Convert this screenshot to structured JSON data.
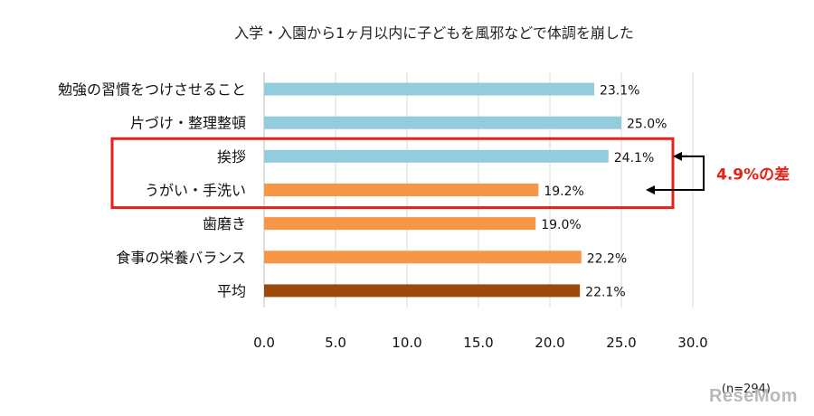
{
  "chart_data": {
    "type": "bar",
    "orientation": "horizontal",
    "title": "入学・入園から1ヶ月以内に子どもを風邪などで体調を崩した",
    "categories": [
      "勉強の習慣をつけさせること",
      "片づけ・整理整頓",
      "挨拶",
      "うがい・手洗い",
      "歯磨き",
      "食事の栄養バランス",
      "平均"
    ],
    "values": [
      23.1,
      25.0,
      24.1,
      19.2,
      19.0,
      22.2,
      22.1
    ],
    "value_labels": [
      "23.1%",
      "25.0%",
      "24.1%",
      "19.2%",
      "19.0%",
      "22.2%",
      "22.1%"
    ],
    "bar_colors": [
      "#93cddd",
      "#93cddd",
      "#93cddd",
      "#f79646",
      "#f79646",
      "#f79646",
      "#9c4a0c"
    ],
    "xlim": [
      0,
      30
    ],
    "xticks": [
      "0.0",
      "5.0",
      "10.0",
      "15.0",
      "20.0",
      "25.0",
      "30.0"
    ],
    "grid": "vertical",
    "annotation": {
      "text": "4.9%の差",
      "color": "#e32219",
      "highlight_categories": [
        "挨拶",
        "うがい・手洗い"
      ]
    },
    "footnote": "(n=294)"
  },
  "watermark": "ReseMom"
}
